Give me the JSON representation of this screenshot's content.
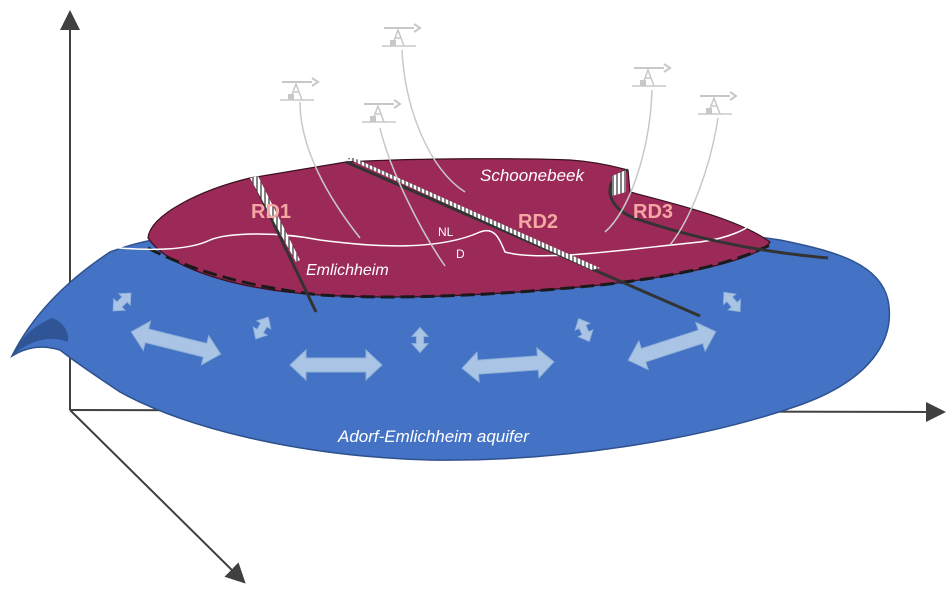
{
  "labels": {
    "schoonebeek": "Schoonebeek",
    "emlichheim": "Emlichheim",
    "aquifer": "Adorf-Emlichheim aquifer",
    "rd1": "RD1",
    "rd2": "RD2",
    "rd3": "RD3",
    "nl": "NL",
    "d": "D"
  },
  "colors": {
    "aquifer": "#4472c4",
    "aquifer_edge": "#2f528f",
    "reservoir": "#9c2a58",
    "reservoir_edge": "#3a1020",
    "rd_label": "#f4a7a3",
    "flow_arrow": "#a9c4e4",
    "axis": "#404040",
    "well": "#c8c8c8"
  },
  "icons": [
    "oil-pumpjack-icon",
    "flow-arrow-icon"
  ]
}
